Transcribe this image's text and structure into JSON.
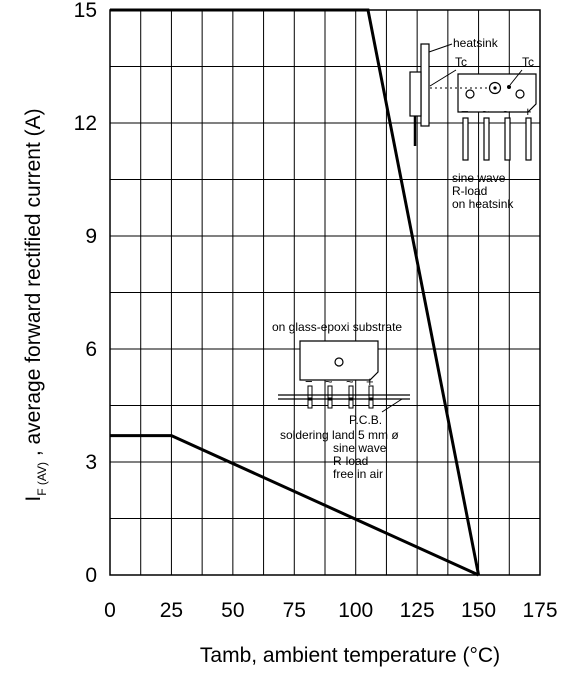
{
  "chart_data": {
    "type": "line",
    "title": "",
    "xlabel": "Tamb, ambient  temperature (°C)",
    "ylabel_main": "I",
    "ylabel_sub": "F (AV)",
    "ylabel_rest": " ,  average forward rectified current (A)",
    "xlim": [
      0,
      175
    ],
    "ylim": [
      0,
      15
    ],
    "x_ticks": [
      0,
      25,
      50,
      75,
      100,
      125,
      150,
      175
    ],
    "y_ticks": [
      0,
      3,
      6,
      9,
      12,
      15
    ],
    "x_tick_labels": [
      "0",
      "25",
      "50",
      "75",
      "100",
      "125",
      "150",
      "175"
    ],
    "y_tick_labels": [
      "0",
      "3",
      "6",
      "9",
      "12",
      "15"
    ],
    "grid": true,
    "series": [
      {
        "x": [
          0,
          105,
          150
        ],
        "y": [
          15,
          15,
          0
        ]
      },
      {
        "x": [
          0,
          25,
          150
        ],
        "y": [
          3.7,
          3.7,
          0
        ]
      }
    ],
    "annotations": {
      "heatsink_box": {
        "heatsink": "heatsink",
        "tc_left": "Tc",
        "tc_right": "Tc",
        "pins": [
          "−",
          "~",
          "~",
          "+"
        ],
        "lines": [
          "sine wave",
          "R-load",
          "on heatsink"
        ]
      },
      "pcb_box": {
        "header": "on glass-epoxi substrate",
        "pins": [
          "−",
          "~",
          "~",
          "+"
        ],
        "pcb": "P.C.B.",
        "lines": [
          "soldering land 5 mm ø",
          "sine wave",
          "R-load",
          "free in air"
        ]
      }
    }
  }
}
